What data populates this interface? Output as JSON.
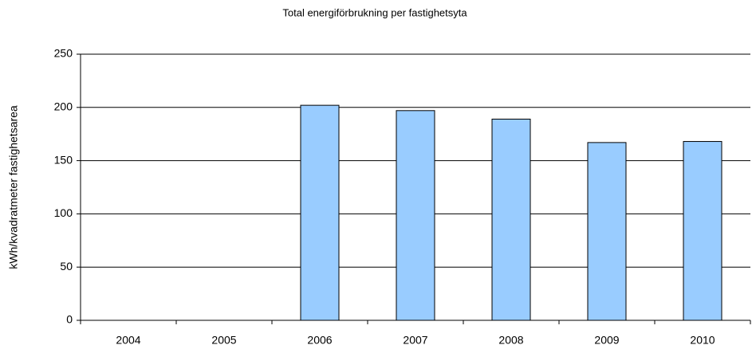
{
  "chart_data": {
    "type": "bar",
    "title": "Total energiförbrukning per fastighetsyta",
    "y_label": "kWh/kvadratmeter fastighetsarea",
    "categories": [
      "2004",
      "2005",
      "2006",
      "2007",
      "2008",
      "2009",
      "2010"
    ],
    "values": [
      null,
      null,
      202,
      197,
      189,
      167,
      168
    ],
    "color": "#99ccff",
    "ylim": [
      0,
      250
    ],
    "yticks": [
      0,
      50,
      100,
      150,
      200,
      250
    ],
    "grid": true
  }
}
